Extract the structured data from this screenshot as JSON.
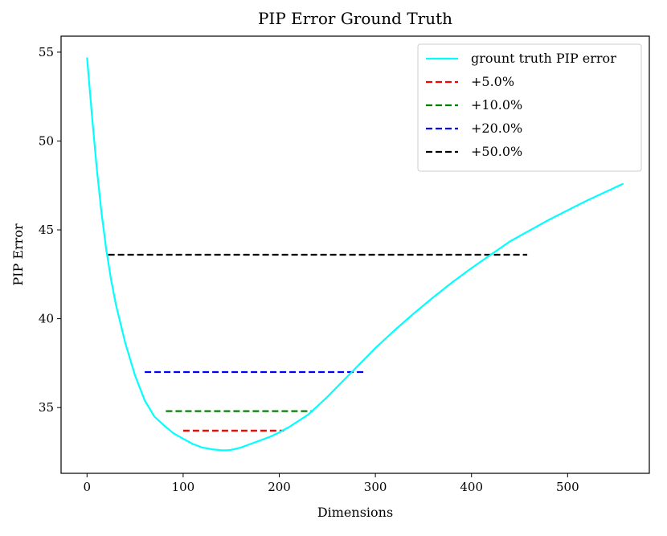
{
  "chart_data": {
    "type": "line",
    "title": "PIP Error Ground Truth",
    "xlabel": "Dimensions",
    "ylabel": "PIP Error",
    "xlim": [
      -27,
      585
    ],
    "ylim": [
      31.3,
      55.9
    ],
    "xticks": [
      0,
      100,
      200,
      300,
      400,
      500
    ],
    "yticks": [
      35,
      40,
      45,
      50,
      55
    ],
    "grid": false,
    "legend_position": "top-right",
    "series": [
      {
        "name": "grount truth PIP error",
        "color": "#00ffff",
        "style": "solid",
        "x": [
          0,
          5,
          10,
          15,
          20,
          25,
          30,
          40,
          50,
          60,
          70,
          80,
          90,
          100,
          110,
          120,
          130,
          140,
          145,
          150,
          160,
          170,
          180,
          190,
          200,
          210,
          220,
          230,
          240,
          250,
          260,
          270,
          280,
          290,
          300,
          320,
          340,
          360,
          380,
          400,
          420,
          440,
          460,
          480,
          500,
          520,
          540,
          558
        ],
        "y": [
          54.7,
          51.5,
          48.5,
          46.0,
          43.9,
          42.2,
          40.8,
          38.6,
          36.8,
          35.4,
          34.5,
          34.0,
          33.55,
          33.25,
          32.95,
          32.75,
          32.65,
          32.6,
          32.6,
          32.62,
          32.75,
          32.95,
          33.15,
          33.35,
          33.6,
          33.9,
          34.25,
          34.6,
          35.1,
          35.6,
          36.15,
          36.7,
          37.25,
          37.8,
          38.35,
          39.35,
          40.3,
          41.2,
          42.05,
          42.85,
          43.6,
          44.35,
          44.95,
          45.55,
          46.1,
          46.65,
          47.15,
          47.6
        ]
      },
      {
        "name": "+5.0%",
        "color": "#ff0000",
        "style": "dashed",
        "x": [
          100,
          205
        ],
        "y": [
          33.7,
          33.7
        ]
      },
      {
        "name": "+10.0%",
        "color": "#008000",
        "style": "dashed",
        "x": [
          82,
          235
        ],
        "y": [
          34.8,
          34.8
        ]
      },
      {
        "name": "+20.0%",
        "color": "#0000ff",
        "style": "dashed",
        "x": [
          60,
          288
        ],
        "y": [
          37.0,
          37.0
        ]
      },
      {
        "name": "+50.0%",
        "color": "#000000",
        "style": "dashed",
        "x": [
          22,
          458
        ],
        "y": [
          43.6,
          43.6
        ]
      }
    ]
  }
}
